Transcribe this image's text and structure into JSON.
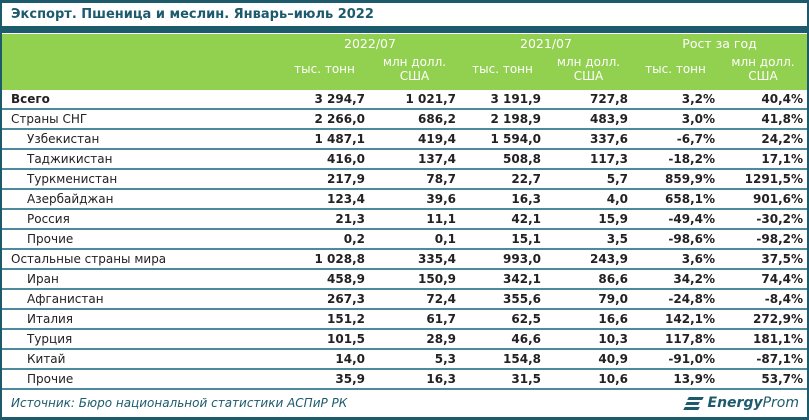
{
  "title": "Экспорт. Пшеница и меслин. Январь–июль 2022",
  "colors": {
    "frame_teal": "#1d5a6c",
    "header_green": "#92d050",
    "row_line_teal": "#4c8a9c",
    "text_dark": "#222222",
    "header_text": "#ffffff"
  },
  "chart_data": {
    "type": "table",
    "title": "Экспорт. Пшеница и меслин. Январь–июль 2022",
    "col_groups": [
      {
        "label": "2022/07"
      },
      {
        "label": "2021/07"
      },
      {
        "label": "Рост за год"
      }
    ],
    "unit_headers": [
      "тыс. тонн",
      "млн долл. США",
      "тыс. тонн",
      "млн долл. США",
      "тыс. тонн",
      "млн долл. США"
    ],
    "rows": [
      {
        "label": "Всего",
        "type": "total",
        "values": [
          "3 294,7",
          "1 021,7",
          "3 191,9",
          "727,8",
          "3,2%",
          "40,4%"
        ]
      },
      {
        "label": "Страны СНГ",
        "type": "group",
        "values": [
          "2 266,0",
          "686,2",
          "2 198,9",
          "483,9",
          "3,0%",
          "41,8%"
        ]
      },
      {
        "label": "Узбекистан",
        "type": "country",
        "values": [
          "1 487,1",
          "419,4",
          "1 594,0",
          "337,6",
          "-6,7%",
          "24,2%"
        ]
      },
      {
        "label": "Таджикистан",
        "type": "country",
        "values": [
          "416,0",
          "137,4",
          "508,8",
          "117,3",
          "-18,2%",
          "17,1%"
        ]
      },
      {
        "label": "Туркменистан",
        "type": "country",
        "values": [
          "217,9",
          "78,7",
          "22,7",
          "5,7",
          "859,9%",
          "1291,5%"
        ]
      },
      {
        "label": "Азербайджан",
        "type": "country",
        "values": [
          "123,4",
          "39,6",
          "16,3",
          "4,0",
          "658,1%",
          "901,6%"
        ]
      },
      {
        "label": "Россия",
        "type": "country",
        "values": [
          "21,3",
          "11,1",
          "42,1",
          "15,9",
          "-49,4%",
          "-30,2%"
        ]
      },
      {
        "label": "Прочие",
        "type": "country",
        "values": [
          "0,2",
          "0,1",
          "15,1",
          "3,5",
          "-98,6%",
          "-98,2%"
        ]
      },
      {
        "label": "Остальные страны мира",
        "type": "group",
        "values": [
          "1 028,8",
          "335,4",
          "993,0",
          "243,9",
          "3,6%",
          "37,5%"
        ]
      },
      {
        "label": "Иран",
        "type": "country",
        "values": [
          "458,9",
          "150,9",
          "342,1",
          "86,6",
          "34,2%",
          "74,4%"
        ]
      },
      {
        "label": "Афганистан",
        "type": "country",
        "values": [
          "267,3",
          "72,4",
          "355,6",
          "79,0",
          "-24,8%",
          "-8,4%"
        ]
      },
      {
        "label": "Италия",
        "type": "country",
        "values": [
          "151,2",
          "61,7",
          "62,5",
          "16,6",
          "142,1%",
          "272,9%"
        ]
      },
      {
        "label": "Турция",
        "type": "country",
        "values": [
          "101,5",
          "28,9",
          "46,6",
          "10,3",
          "117,8%",
          "181,1%"
        ]
      },
      {
        "label": "Китай",
        "type": "country",
        "values": [
          "14,0",
          "5,3",
          "154,8",
          "40,9",
          "-91,0%",
          "-87,1%"
        ]
      },
      {
        "label": "Прочие",
        "type": "country",
        "values": [
          "35,9",
          "16,3",
          "31,5",
          "10,6",
          "13,9%",
          "53,7%"
        ]
      }
    ]
  },
  "footer": {
    "source": "Источник: Бюро национальной статистики АСПиР РК",
    "logo_bold": "Energy",
    "logo_light": "Prom"
  }
}
